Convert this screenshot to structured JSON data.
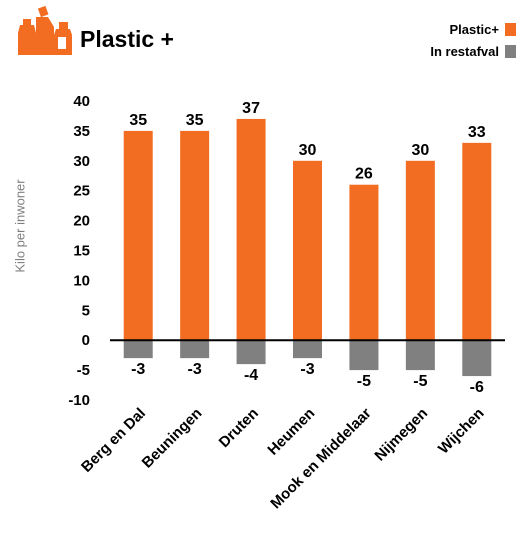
{
  "header": {
    "title": "Plastic +",
    "logo_icon": "plastic-containers-icon"
  },
  "legend": {
    "items": [
      {
        "label": "Plastic+",
        "color": "#F26D21"
      },
      {
        "label": "In restafval",
        "color": "#808080"
      }
    ]
  },
  "chart_data": {
    "type": "bar",
    "title": "Plastic +",
    "ylabel": "Kilo per inwoner",
    "xlabel": "",
    "ylim": [
      -10,
      40
    ],
    "yticks": [
      -10,
      -5,
      0,
      5,
      10,
      15,
      20,
      25,
      30,
      35,
      40
    ],
    "grid": false,
    "legend_position": "top-right",
    "categories": [
      "Berg en Dal",
      "Beuningen",
      "Druten",
      "Heumen",
      "Mook en Middelaar",
      "Nijmegen",
      "Wijchen"
    ],
    "series": [
      {
        "name": "Plastic+",
        "color": "#F26D21",
        "values": [
          35,
          35,
          37,
          30,
          26,
          30,
          33
        ],
        "labels": [
          "35",
          "35",
          "37",
          "30",
          "26",
          "30",
          "33"
        ]
      },
      {
        "name": "In restafval",
        "color": "#808080",
        "values": [
          -3,
          -3,
          -4,
          -3,
          -5,
          -5,
          -6
        ],
        "labels": [
          "-3",
          "-3",
          "-4",
          "-3",
          "-5",
          "-5",
          "-6"
        ]
      }
    ]
  }
}
